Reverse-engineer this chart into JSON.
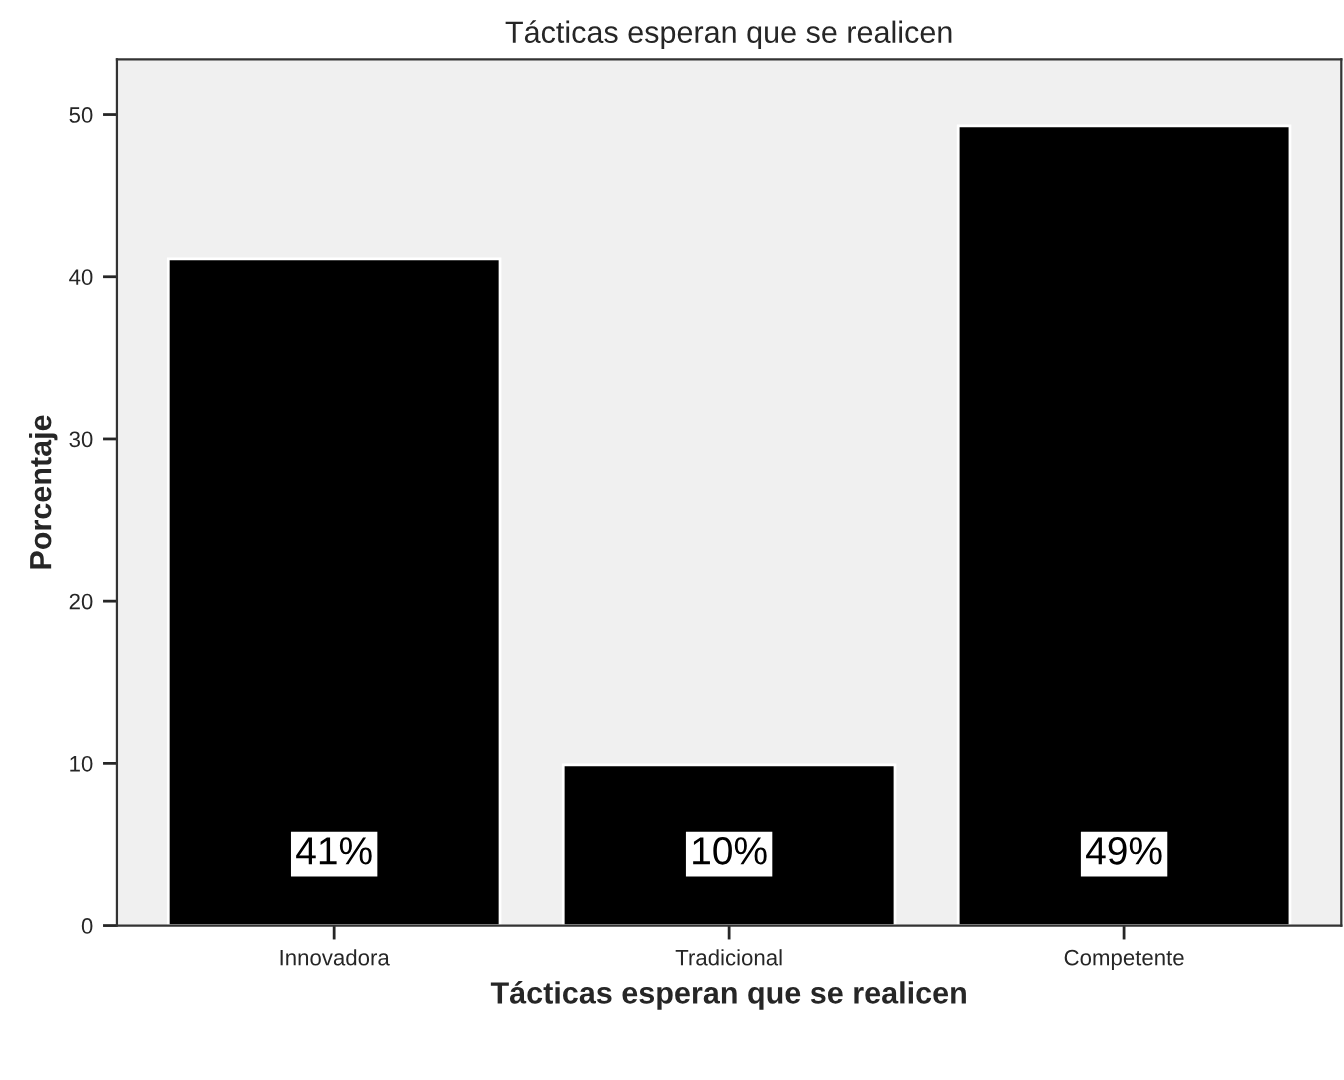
{
  "chart_data": {
    "type": "bar",
    "title": "Tácticas esperan que se realicen",
    "xlabel": "Tácticas esperan que se realicen",
    "ylabel": "Porcentaje",
    "categories": [
      "Innovadora",
      "Tradicional",
      "Competente"
    ],
    "values": [
      41.1,
      9.9,
      49.3
    ],
    "value_labels": [
      "41%",
      "10%",
      "49%"
    ],
    "color": "#000000",
    "ylim": [
      0,
      53.4
    ],
    "yticks": [
      0,
      10,
      20,
      30,
      40,
      50
    ],
    "grid": false
  }
}
